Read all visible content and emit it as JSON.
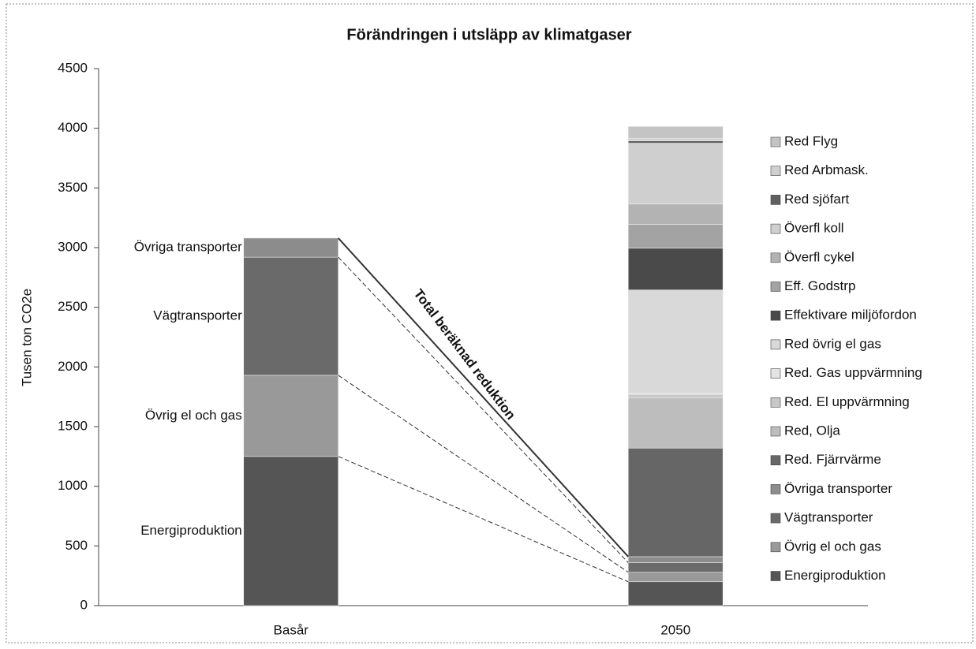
{
  "chart_data": {
    "type": "stacked_bar",
    "title": "Förändringen i utsläpp av klimatgaser",
    "y_label": "Tusen ton CO2e",
    "annotation": "Total beräknad reduktion",
    "categories": [
      "Basår",
      "2050"
    ],
    "ylim": [
      0,
      4500
    ],
    "yticks": [
      0,
      500,
      1000,
      1500,
      2000,
      2500,
      3000,
      3500,
      4000,
      4500
    ],
    "legend": "right",
    "series": [
      {
        "name": "Energiproduktion",
        "color": "#555555",
        "values": [
          1250,
          200
        ]
      },
      {
        "name": "Övrig el och gas",
        "color": "#999999",
        "values": [
          680,
          80
        ]
      },
      {
        "name": "Vägtransporter",
        "color": "#6a6a6a",
        "values": [
          990,
          80
        ]
      },
      {
        "name": "Övriga transporter",
        "color": "#8c8c8c",
        "values": [
          160,
          50
        ]
      },
      {
        "name": "Red. Fjärrvärme",
        "color": "#666666",
        "values": [
          null,
          910
        ]
      },
      {
        "name": "Red, Olja",
        "color": "#bdbdbd",
        "values": [
          null,
          420
        ]
      },
      {
        "name": "Red. El uppvärmning",
        "color": "#c8c8c8",
        "values": [
          null,
          30
        ]
      },
      {
        "name": "Red. Gas uppvärmning",
        "color": "#e4e4e4",
        "values": [
          null,
          10
        ]
      },
      {
        "name": "Red övrig el gas",
        "color": "#d9d9d9",
        "values": [
          null,
          865
        ]
      },
      {
        "name": "Effektivare miljöfordon",
        "color": "#4a4a4a",
        "values": [
          null,
          350
        ]
      },
      {
        "name": "Eff. Godstrp",
        "color": "#a3a3a3",
        "values": [
          null,
          200
        ]
      },
      {
        "name": "Överfl cykel",
        "color": "#b3b3b3",
        "values": [
          null,
          170
        ]
      },
      {
        "name": "Överfl koll",
        "color": "#cfcfcf",
        "values": [
          null,
          510
        ]
      },
      {
        "name": "Red sjöfart",
        "color": "#606060",
        "values": [
          null,
          20
        ]
      },
      {
        "name": "Red Arbmask.",
        "color": "#d0d0d0",
        "values": [
          null,
          20
        ]
      },
      {
        "name": "Red Flyg",
        "color": "#c4c4c4",
        "values": [
          null,
          100
        ]
      }
    ]
  }
}
